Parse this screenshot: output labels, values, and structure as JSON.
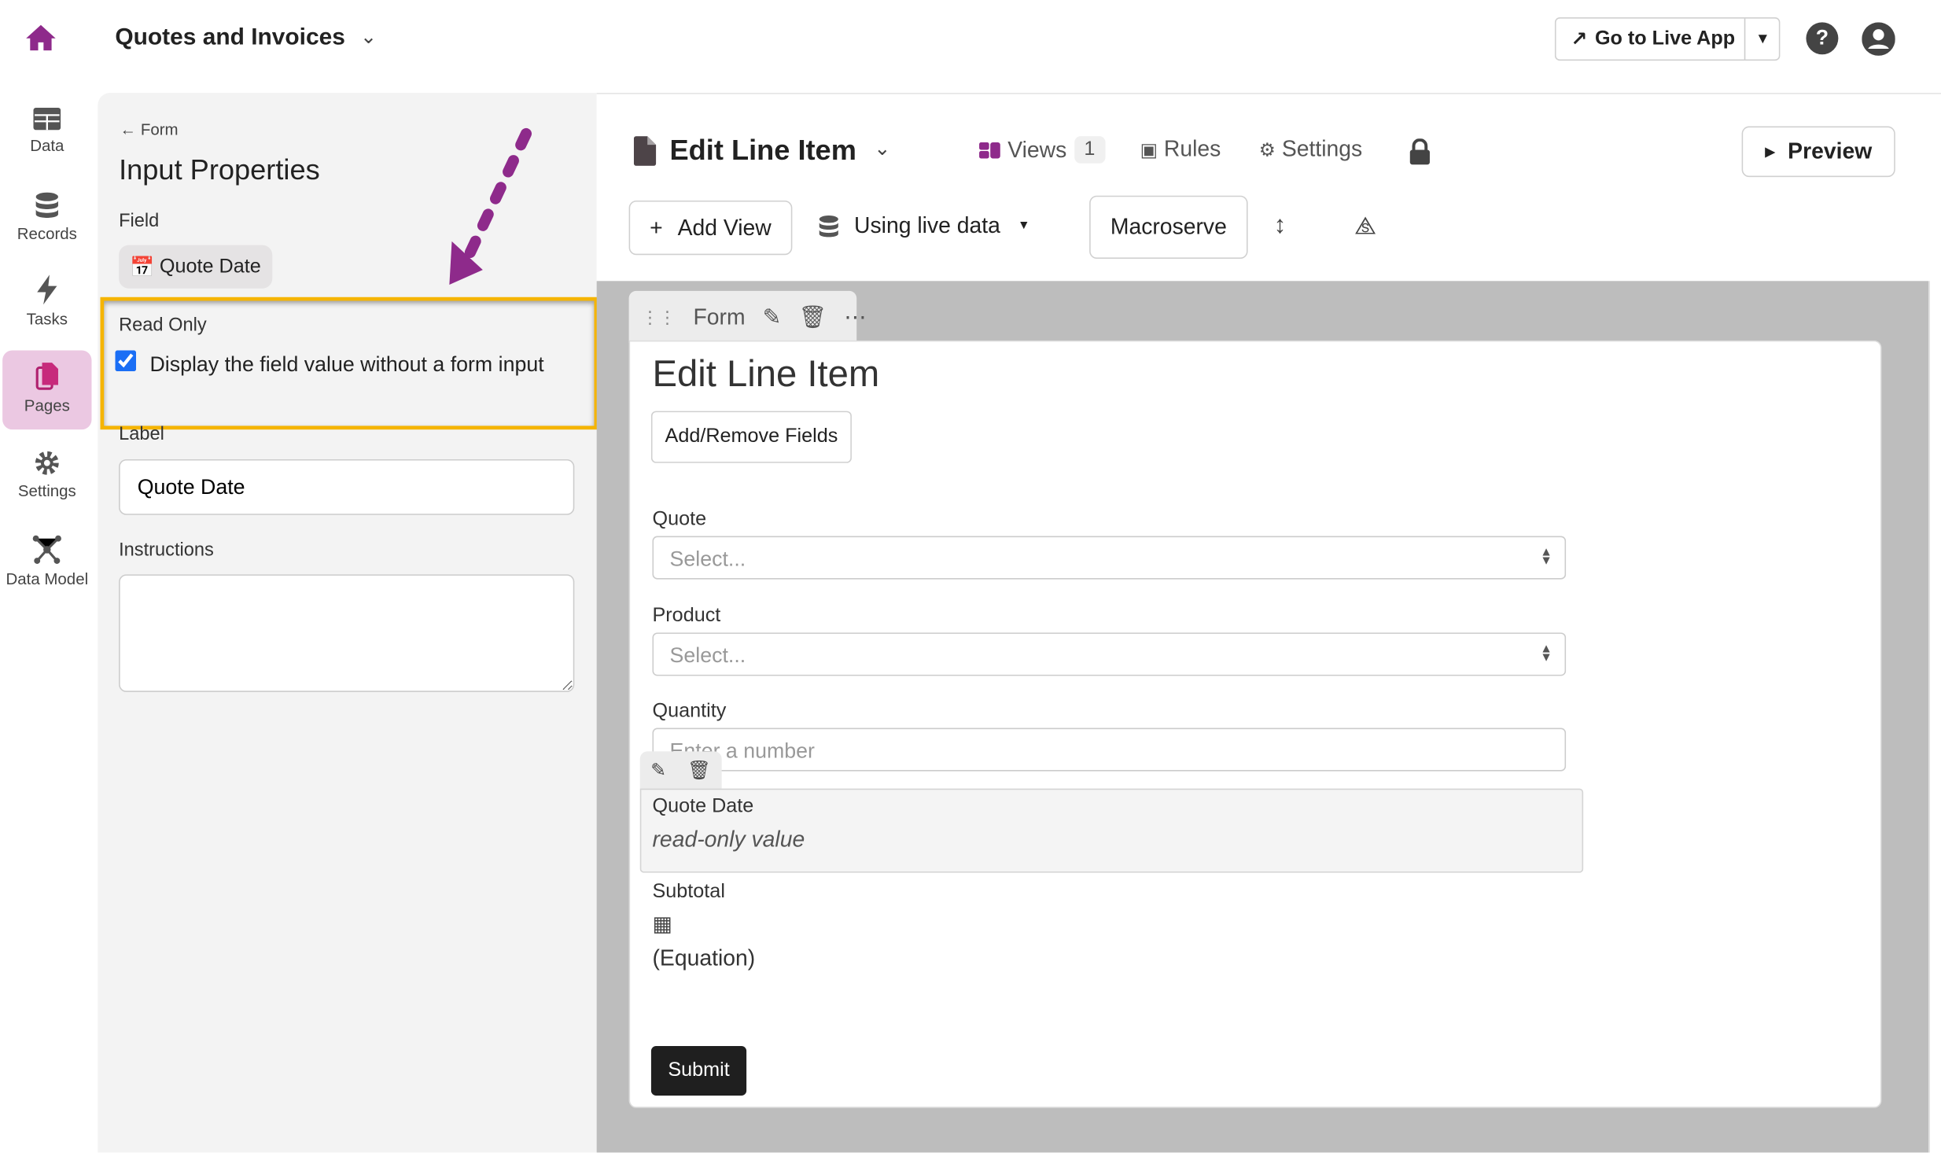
{
  "header": {
    "app_title": "Quotes and Invoices",
    "go_live_label": "Go to Live App"
  },
  "sidebar": {
    "items": [
      {
        "label": "Data"
      },
      {
        "label": "Records"
      },
      {
        "label": "Tasks"
      },
      {
        "label": "Pages",
        "active": true
      },
      {
        "label": "Settings"
      },
      {
        "label": "Data Model"
      }
    ]
  },
  "panel": {
    "back_label": "Form",
    "title": "Input Properties",
    "field_label": "Field",
    "field_value": "Quote Date",
    "read_only_label": "Read Only",
    "read_only_checkbox_label": "Display the field value without a form input",
    "read_only_checked": true,
    "label_label": "Label",
    "label_value": "Quote Date",
    "instructions_label": "Instructions",
    "instructions_value": ""
  },
  "toolbar": {
    "page_title": "Edit Line Item",
    "views_label": "Views",
    "views_count": "1",
    "rules_label": "Rules",
    "settings_label": "Settings",
    "preview_label": "Preview",
    "add_view_label": "Add View",
    "data_source_label": "Using live data",
    "theme_label": "Macroserve"
  },
  "form": {
    "tab_label": "Form",
    "title": "Edit Line Item",
    "add_remove_label": "Add/Remove Fields",
    "fields": [
      {
        "label": "Quote",
        "placeholder": "Select..."
      },
      {
        "label": "Product",
        "placeholder": "Select..."
      },
      {
        "label": "Quantity",
        "placeholder": "Enter a number"
      }
    ],
    "quote_date_label": "Quote Date",
    "quote_date_value": "read-only value",
    "subtotal_label": "Subtotal",
    "subtotal_value": "(Equation)",
    "submit_label": "Submit"
  },
  "colors": {
    "brand": "#8e2a8b",
    "highlight": "#f5b400",
    "active_nav": "#ebc8e2",
    "checkbox": "#1a6ef5"
  }
}
